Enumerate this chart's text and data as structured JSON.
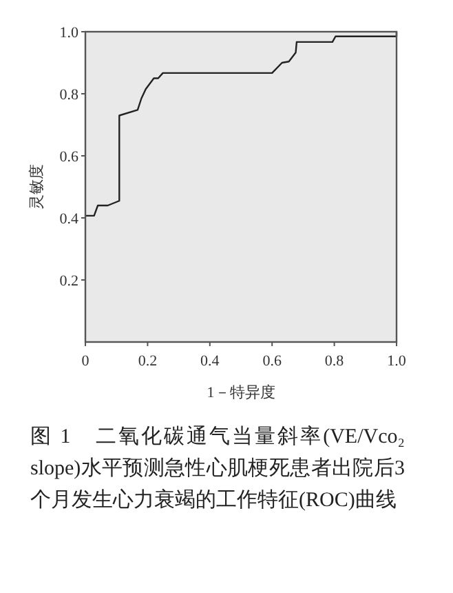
{
  "chart_data": {
    "type": "line",
    "title": "图 1　二氧化碳通气当量斜率(VE/Vco₂ slope)水平预测急性心肌梗死患者出院后3个月发生心力衰竭的工作特征(ROC)曲线",
    "xlabel": "1－特异度",
    "ylabel": "灵敏度",
    "xlim": [
      0,
      1
    ],
    "ylim": [
      0,
      1
    ],
    "xticks": [
      0,
      {
        "value": 0.2,
        "label": "0.2"
      },
      {
        "value": 0.4,
        "label": "0.4"
      },
      {
        "value": 0.6,
        "label": "0.6"
      },
      {
        "value": 0.8,
        "label": "0.8"
      },
      {
        "value": 1,
        "label": "1.0"
      }
    ],
    "yticks": [
      {
        "value": 0.2,
        "label": "0.2"
      },
      {
        "value": 0.4,
        "label": "0.4"
      },
      {
        "value": 0.6,
        "label": "0.6"
      },
      {
        "value": 0.8,
        "label": "0.8"
      },
      {
        "value": 1,
        "label": "1.0"
      }
    ],
    "grid": false,
    "marker": "none",
    "line_style": "solid",
    "series": [
      {
        "color": "#222222",
        "x": [
          0,
          0.028,
          0.04,
          0.072,
          0.109,
          0.109,
          0.168,
          0.18,
          0.194,
          0.22,
          0.234,
          0.249,
          0.6,
          0.632,
          0.654,
          0.676,
          0.679,
          0.794,
          0.804,
          1,
          1
        ],
        "values": [
          0.407,
          0.407,
          0.44,
          0.44,
          0.455,
          0.73,
          0.748,
          0.785,
          0.815,
          0.85,
          0.85,
          0.867,
          0.867,
          0.9,
          0.904,
          0.933,
          0.967,
          0.967,
          0.985,
          0.985,
          1
        ]
      }
    ]
  }
}
